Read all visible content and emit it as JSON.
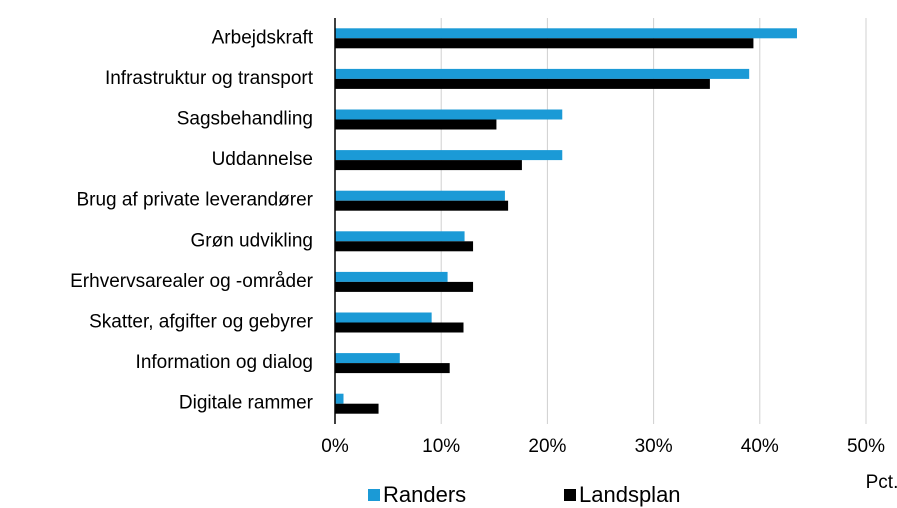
{
  "chart_data": {
    "type": "barh",
    "categories": [
      "Arbejdskraft",
      "Infrastruktur og transport",
      "Sagsbehandling",
      "Uddannelse",
      "Brug af private leverandører",
      "Grøn udvikling",
      "Erhvervsarealer og -områder",
      "Skatter, afgifter og gebyrer",
      "Information og dialog",
      "Digitale rammer"
    ],
    "series": [
      {
        "name": "Randers",
        "color": "#1b9ad6",
        "values": [
          43.5,
          39,
          21.4,
          21.4,
          16.0,
          12.2,
          10.6,
          9.1,
          6.1,
          0.8
        ]
      },
      {
        "name": "Landsplan",
        "color": "#000000",
        "values": [
          39.4,
          35.3,
          15.2,
          17.6,
          16.3,
          13.0,
          13.0,
          12.1,
          10.8,
          4.1
        ]
      }
    ],
    "xlim": [
      0,
      50
    ],
    "xticks": [
      {
        "value": 0,
        "label": "0%"
      },
      {
        "value": 10,
        "label": "10%"
      },
      {
        "value": 20,
        "label": "20%"
      },
      {
        "value": 30,
        "label": "30%"
      },
      {
        "value": 40,
        "label": "40%"
      },
      {
        "value": 50,
        "label": "50%"
      }
    ],
    "x_label": "Pct.",
    "grid": true,
    "legend": "bottom"
  }
}
